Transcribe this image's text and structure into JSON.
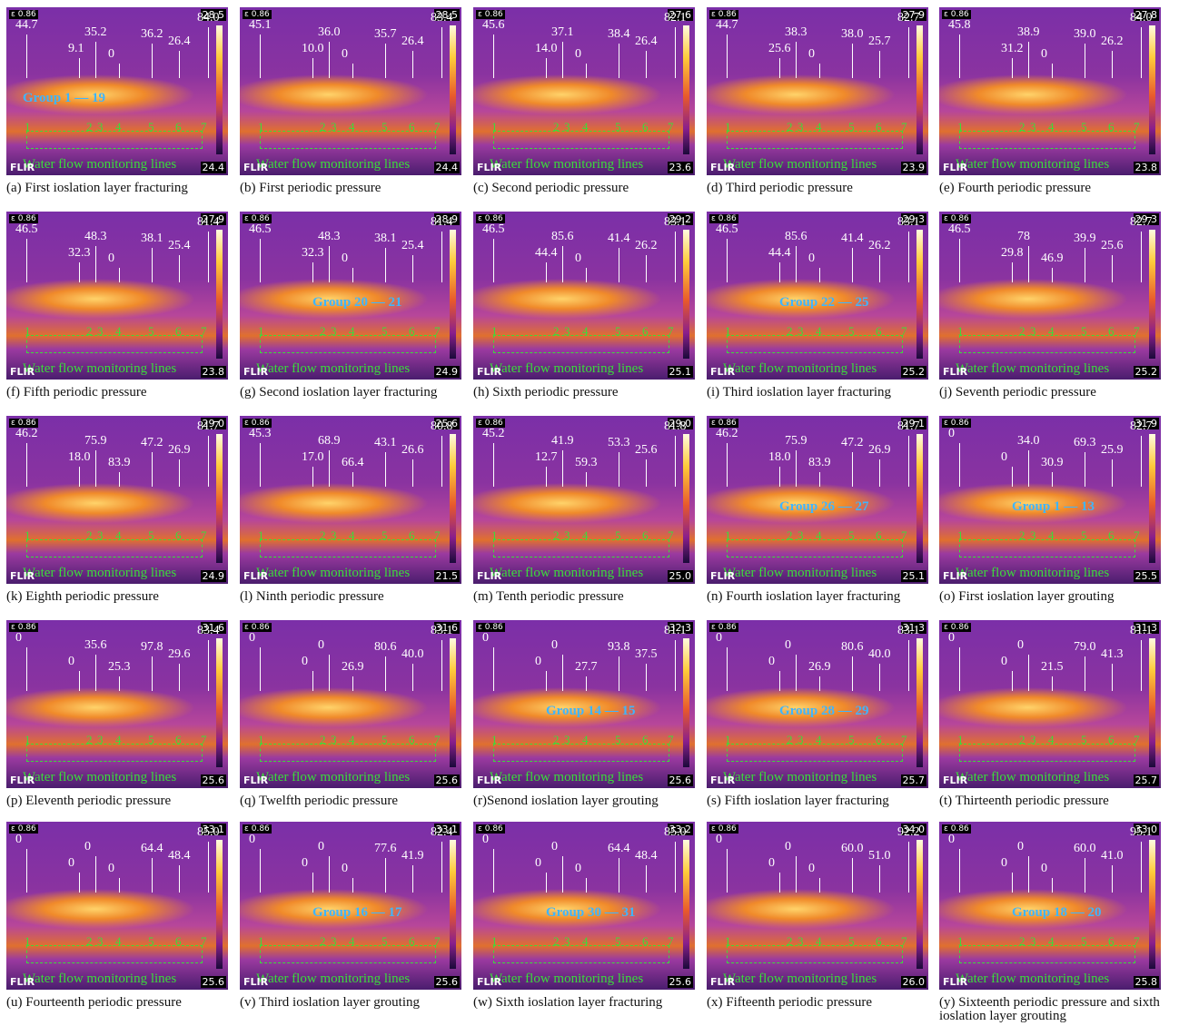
{
  "common": {
    "emissivity": "ε 0.86",
    "brand": "FLIR",
    "monitor": "Water flow monitoring lines",
    "line_numbers": [
      "1",
      "2",
      "3",
      "4",
      "5",
      "6",
      "7"
    ]
  },
  "panels": [
    {
      "caption": "(a) First ioslation layer fracturing",
      "scale_max": "28.5",
      "scale_min": "24.4",
      "readings": [
        "44.7",
        "9.1",
        "35.2",
        "0",
        "36.2",
        "26.4",
        "84.0"
      ],
      "group": "Group 1 — 19"
    },
    {
      "caption": "(b) First periodic pressure",
      "scale_max": "28.5",
      "scale_min": "24.4",
      "readings": [
        "45.1",
        "10.0",
        "36.0",
        "0",
        "35.7",
        "26.4",
        "83.4"
      ]
    },
    {
      "caption": "(c) Second periodic pressure",
      "scale_max": "27.6",
      "scale_min": "23.6",
      "readings": [
        "45.6",
        "14.0",
        "37.1",
        "0",
        "38.4",
        "26.4",
        "82.1"
      ]
    },
    {
      "caption": "(d) Third periodic pressure",
      "scale_max": "27.9",
      "scale_min": "23.9",
      "readings": [
        "44.7",
        "25.6",
        "38.3",
        "0",
        "38.0",
        "25.7",
        "82.7"
      ]
    },
    {
      "caption": "(e) Fourth periodic pressure",
      "scale_max": "27.8",
      "scale_min": "23.8",
      "readings": [
        "45.8",
        "31.2",
        "38.9",
        "0",
        "39.0",
        "26.2",
        "84.0"
      ]
    },
    {
      "caption": "(f) Fifth periodic pressure",
      "scale_max": "27.9",
      "scale_min": "23.8",
      "readings": [
        "46.5",
        "32.3",
        "48.3",
        "0",
        "38.1",
        "25.4",
        "81.4"
      ]
    },
    {
      "caption": "(g) Second ioslation layer fracturing",
      "scale_max": "28.9",
      "scale_min": "24.9",
      "readings": [
        "46.5",
        "32.3",
        "48.3",
        "0",
        "38.1",
        "25.4",
        "81.4"
      ],
      "group": "Group 20 — 21"
    },
    {
      "caption": "(h) Sixth periodic pressure",
      "scale_max": "29.2",
      "scale_min": "25.1",
      "readings": [
        "46.5",
        "44.4",
        "85.6",
        "0",
        "41.4",
        "26.2",
        "83.1"
      ]
    },
    {
      "caption": "(i) Third ioslation layer fracturing",
      "scale_max": "29.3",
      "scale_min": "25.2",
      "readings": [
        "46.5",
        "44.4",
        "85.6",
        "0",
        "41.4",
        "26.2",
        "83.1"
      ],
      "group": "Group 22 — 25"
    },
    {
      "caption": "(j) Seventh periodic pressure",
      "scale_max": "29.3",
      "scale_min": "25.2",
      "readings": [
        "46.5",
        "29.8",
        "78",
        "46.9",
        "39.9",
        "25.6",
        "82.7"
      ]
    },
    {
      "caption": "(k) Eighth periodic pressure",
      "scale_max": "29.0",
      "scale_min": "24.9",
      "readings": [
        "46.2",
        "18.0",
        "75.9",
        "83.9",
        "47.2",
        "26.9",
        "81.7"
      ]
    },
    {
      "caption": "(l) Ninth periodic pressure",
      "scale_max": "25.6",
      "scale_min": "21.5",
      "readings": [
        "45.3",
        "17.0",
        "68.9",
        "66.4",
        "43.1",
        "26.6",
        "80.8"
      ]
    },
    {
      "caption": "(m) Tenth periodic pressure",
      "scale_max": "29.0",
      "scale_min": "25.0",
      "readings": [
        "45.2",
        "12.7",
        "41.9",
        "59.3",
        "53.3",
        "25.6",
        "81.8"
      ]
    },
    {
      "caption": "(n) Fourth ioslation layer fracturing",
      "scale_max": "29.1",
      "scale_min": "25.1",
      "readings": [
        "46.2",
        "18.0",
        "75.9",
        "83.9",
        "47.2",
        "26.9",
        "81.7"
      ],
      "group": "Group 26 — 27"
    },
    {
      "caption": "(o) First ioslation layer grouting",
      "scale_max": "31.9",
      "scale_min": "25.5",
      "readings": [
        "0",
        "0",
        "34.0",
        "30.9",
        "69.3",
        "25.9",
        "82.7"
      ],
      "group": "Group 1 — 13"
    },
    {
      "caption": "(p) Eleventh periodic pressure",
      "scale_max": "31.6",
      "scale_min": "25.6",
      "readings": [
        "0",
        "0",
        "35.6",
        "25.3",
        "97.8",
        "29.6",
        "83.4"
      ]
    },
    {
      "caption": "(q) Twelfth periodic pressure",
      "scale_max": "31.6",
      "scale_min": "25.6",
      "readings": [
        "0",
        "0",
        "0",
        "26.9",
        "80.6",
        "40.0",
        "83.1"
      ]
    },
    {
      "caption": "(r)Senond ioslation layer grouting",
      "scale_max": "32.3",
      "scale_min": "25.6",
      "readings": [
        "0",
        "0",
        "0",
        "27.7",
        "93.8",
        "37.5",
        "81.1"
      ],
      "group": "Group 14 — 15"
    },
    {
      "caption": "(s) Fifth ioslation layer fracturing",
      "scale_max": "31.3",
      "scale_min": "25.7",
      "readings": [
        "0",
        "0",
        "0",
        "26.9",
        "80.6",
        "40.0",
        "83.1"
      ],
      "group": "Group 28 — 29"
    },
    {
      "caption": "(t) Thirteenth periodic pressure",
      "scale_max": "31.3",
      "scale_min": "25.7",
      "readings": [
        "0",
        "0",
        "0",
        "21.5",
        "79.0",
        "41.3",
        "81.1"
      ]
    },
    {
      "caption": "(u) Fourteenth periodic pressure",
      "scale_max": "33.1",
      "scale_min": "25.6",
      "readings": [
        "0",
        "0",
        "0",
        "0",
        "64.4",
        "48.4",
        "85.0"
      ]
    },
    {
      "caption": "(v) Third ioslation layer grouting",
      "scale_max": "33.1",
      "scale_min": "25.6",
      "readings": [
        "0",
        "0",
        "0",
        "0",
        "77.6",
        "41.9",
        "82.4"
      ],
      "group": "Group 16 — 17"
    },
    {
      "caption": "(w) Sixth ioslation layer fracturing",
      "scale_max": "33.2",
      "scale_min": "25.6",
      "readings": [
        "0",
        "0",
        "0",
        "0",
        "64.4",
        "48.4",
        "85.0"
      ],
      "group": "Group 30 — 31"
    },
    {
      "caption": "(x) Fifteenth periodic pressure",
      "scale_max": "34.0",
      "scale_min": "26.0",
      "readings": [
        "0",
        "0",
        "0",
        "0",
        "60.0",
        "51.0",
        "92.2"
      ]
    },
    {
      "caption": "(y) Sixteenth periodic pressure and sixth ioslation layer grouting",
      "scale_max": "33.0",
      "scale_min": "25.8",
      "readings": [
        "0",
        "0",
        "0",
        "0",
        "60.0",
        "41.0",
        "95.1"
      ],
      "group": "Group 18 — 20"
    }
  ]
}
